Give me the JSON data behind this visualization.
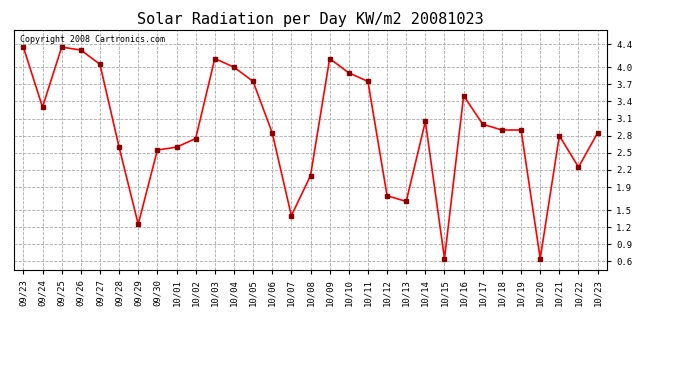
{
  "title": "Solar Radiation per Day KW/m2 20081023",
  "copyright_text": "Copyright 2008 Cartronics.com",
  "dates": [
    "09/23",
    "09/24",
    "09/25",
    "09/26",
    "09/27",
    "09/28",
    "09/29",
    "09/30",
    "10/01",
    "10/02",
    "10/03",
    "10/04",
    "10/05",
    "10/06",
    "10/07",
    "10/08",
    "10/09",
    "10/10",
    "10/11",
    "10/12",
    "10/13",
    "10/14",
    "10/15",
    "10/16",
    "10/17",
    "10/18",
    "10/19",
    "10/20",
    "10/21",
    "10/22",
    "10/23"
  ],
  "values": [
    4.35,
    3.3,
    4.35,
    4.3,
    4.05,
    2.6,
    1.25,
    2.55,
    2.6,
    2.75,
    4.15,
    4.0,
    3.75,
    2.85,
    1.4,
    2.1,
    4.15,
    3.9,
    3.75,
    1.75,
    1.65,
    3.05,
    0.65,
    3.5,
    3.0,
    2.9,
    2.9,
    0.65,
    2.8,
    2.25,
    2.85
  ],
  "yticks": [
    0.6,
    0.9,
    1.2,
    1.5,
    1.9,
    2.2,
    2.5,
    2.8,
    3.1,
    3.4,
    3.7,
    4.0,
    4.4
  ],
  "ylim": [
    0.45,
    4.65
  ],
  "line_color": "red",
  "marker": "s",
  "marker_color": "darkred",
  "marker_size": 2.5,
  "line_width": 1.2,
  "bg_color": "#ffffff",
  "plot_bg_color": "#ffffff",
  "grid_color": "#aaaaaa",
  "grid_style": "--",
  "title_fontsize": 11,
  "tick_fontsize": 6.5,
  "copyright_fontsize": 6
}
